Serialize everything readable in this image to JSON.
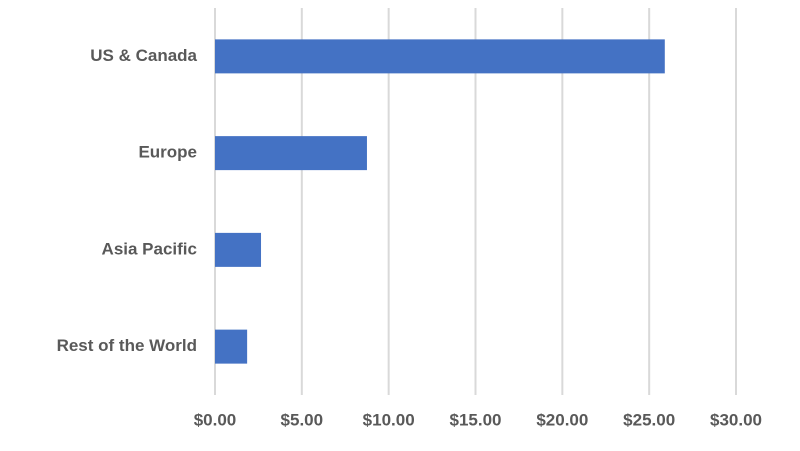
{
  "chart_data": {
    "type": "hbar",
    "categories": [
      "US & Canada",
      "Europe",
      "Asia Pacific",
      "Rest of the World"
    ],
    "values": [
      25.9,
      8.75,
      2.65,
      1.85
    ],
    "color": "#4472c4",
    "xlim": [
      0,
      30
    ],
    "xticks": [
      {
        "value": 0,
        "label": "$0.00"
      },
      {
        "value": 5,
        "label": "$5.00"
      },
      {
        "value": 10,
        "label": "$10.00"
      },
      {
        "value": 15,
        "label": "$15.00"
      },
      {
        "value": 20,
        "label": "$20.00"
      },
      {
        "value": 25,
        "label": "$25.00"
      },
      {
        "value": 30,
        "label": "$30.00"
      }
    ],
    "grid": true
  }
}
